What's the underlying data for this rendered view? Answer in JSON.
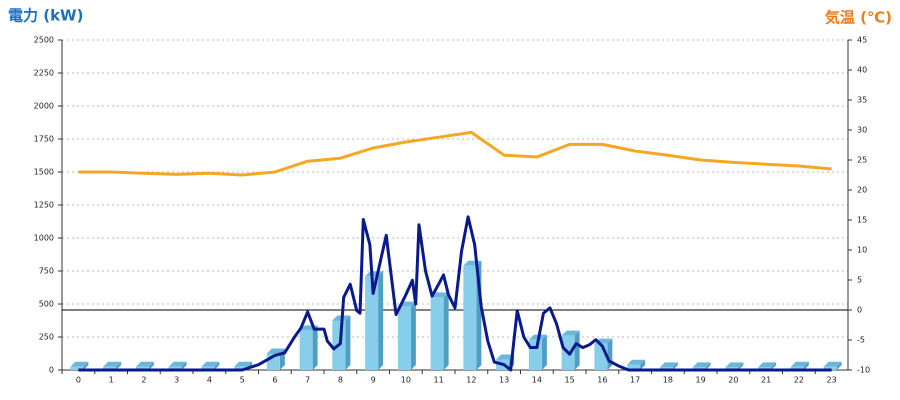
{
  "chart_data": {
    "type": "bar",
    "title": "電力 (kW)",
    "y2_title": "気温 (℃)",
    "categories": [
      "0",
      "1",
      "2",
      "3",
      "4",
      "5",
      "6",
      "7",
      "8",
      "9",
      "10",
      "11",
      "12",
      "13",
      "14",
      "15",
      "16",
      "17",
      "18",
      "19",
      "20",
      "21",
      "22",
      "23"
    ],
    "series": [
      {
        "type": "bar",
        "color": "#87ceeb",
        "values": [
          25,
          25,
          25,
          25,
          25,
          25,
          125,
          300,
          375,
          710,
          480,
          550,
          790,
          80,
          230,
          260,
          200,
          40,
          20,
          20,
          20,
          20,
          25,
          25
        ]
      },
      {
        "type": "line",
        "color": "#0a1a8c",
        "x": [
          0,
          5,
          5.5,
          6,
          6.3,
          6.6,
          6.8,
          7,
          7.2,
          7.5,
          7.6,
          7.8,
          8,
          8.1,
          8.3,
          8.5,
          8.6,
          8.7,
          8.9,
          9,
          9.2,
          9.4,
          9.7,
          10,
          10.2,
          10.3,
          10.4,
          10.6,
          10.8,
          11,
          11.15,
          11.3,
          11.5,
          11.7,
          11.9,
          12.1,
          12.3,
          12.5,
          12.7,
          13,
          13.2,
          13.4,
          13.6,
          13.8,
          14,
          14.2,
          14.4,
          14.6,
          14.8,
          15,
          15.2,
          15.4,
          15.6,
          15.8,
          16,
          16.2,
          16.5,
          16.8,
          23
        ],
        "values": [
          0,
          0,
          40,
          110,
          130,
          250,
          320,
          440,
          310,
          310,
          220,
          160,
          200,
          550,
          650,
          450,
          430,
          1140,
          950,
          580,
          800,
          1020,
          420,
          570,
          680,
          500,
          1100,
          750,
          560,
          650,
          720,
          570,
          470,
          900,
          1160,
          950,
          480,
          220,
          60,
          40,
          0,
          450,
          250,
          170,
          170,
          430,
          470,
          350,
          170,
          120,
          200,
          170,
          190,
          230,
          180,
          70,
          30,
          0,
          0
        ]
      },
      {
        "type": "line",
        "axis": "y2",
        "color": "#f5a623",
        "values": [
          23,
          23,
          22.8,
          22.6,
          22.8,
          22.5,
          23,
          24.8,
          25.3,
          27,
          28,
          28.8,
          29.6,
          25.8,
          25.5,
          27.6,
          27.6,
          26.5,
          25.8,
          25,
          24.6,
          24.3,
          24,
          23.5
        ]
      }
    ],
    "ylim": [
      0,
      2500
    ],
    "yticks": [
      0,
      250,
      500,
      750,
      1000,
      1250,
      1500,
      1750,
      2000,
      2250,
      2500
    ],
    "y2lim": [
      -10,
      45
    ],
    "y2ticks": [
      -10,
      -5,
      0,
      5,
      10,
      15,
      20,
      25,
      30,
      35,
      40,
      45
    ],
    "y2_reference": 0,
    "grid": true
  }
}
